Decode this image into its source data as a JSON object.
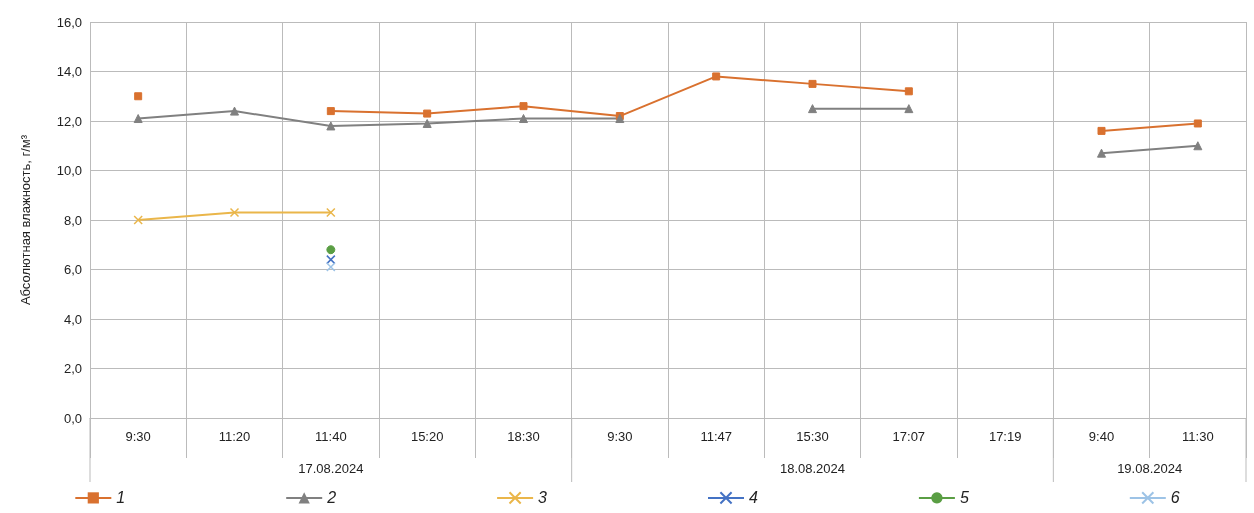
{
  "chart_data": {
    "type": "line",
    "ylabel": "Абсолютная влажность, г/м³",
    "categories": [
      "9:30",
      "11:20",
      "11:40",
      "15:20",
      "18:30",
      "9:30",
      "11:47",
      "15:30",
      "17:07",
      "17:19",
      "9:40",
      "11:30"
    ],
    "annotations": [
      "17.08.2024",
      "18.08.2024",
      "19.08.2024"
    ],
    "ylim": [
      0,
      16
    ],
    "yticks": [
      {
        "value": 0,
        "label": "0,0"
      },
      {
        "value": 2,
        "label": "2,0"
      },
      {
        "value": 4,
        "label": "4,0"
      },
      {
        "value": 6,
        "label": "6,0"
      },
      {
        "value": 8,
        "label": "8,0"
      },
      {
        "value": 10,
        "label": "10,0"
      },
      {
        "value": 12,
        "label": "12,0"
      },
      {
        "value": 14,
        "label": "14,0"
      },
      {
        "value": 16,
        "label": "16,0"
      }
    ],
    "grid": true,
    "legend": "bottom",
    "series": [
      {
        "name": "1",
        "color": "#d9712f",
        "marker": "square",
        "values": [
          13.0,
          null,
          12.4,
          12.3,
          12.6,
          12.2,
          13.8,
          13.5,
          13.2,
          null,
          11.6,
          11.9
        ]
      },
      {
        "name": "2",
        "color": "#808080",
        "marker": "triangle",
        "values": [
          12.1,
          12.4,
          11.8,
          11.9,
          12.1,
          12.1,
          null,
          12.5,
          12.5,
          null,
          10.7,
          11.0
        ]
      },
      {
        "name": "3",
        "color": "#eab64a",
        "marker": "cross",
        "values": [
          8.0,
          8.3,
          8.3,
          null,
          null,
          null,
          null,
          null,
          null,
          null,
          null,
          null
        ]
      },
      {
        "name": "4",
        "color": "#4472c4",
        "marker": "cross",
        "values": [
          null,
          null,
          6.4,
          null,
          null,
          null,
          null,
          null,
          null,
          null,
          null,
          null
        ]
      },
      {
        "name": "5",
        "color": "#5a9e44",
        "marker": "circle",
        "values": [
          null,
          null,
          6.8,
          null,
          null,
          null,
          null,
          null,
          null,
          null,
          null,
          null
        ]
      },
      {
        "name": "6",
        "color": "#9dc3e6",
        "marker": "cross",
        "values": [
          null,
          null,
          6.1,
          null,
          null,
          null,
          null,
          null,
          null,
          null,
          null,
          null
        ]
      }
    ]
  }
}
